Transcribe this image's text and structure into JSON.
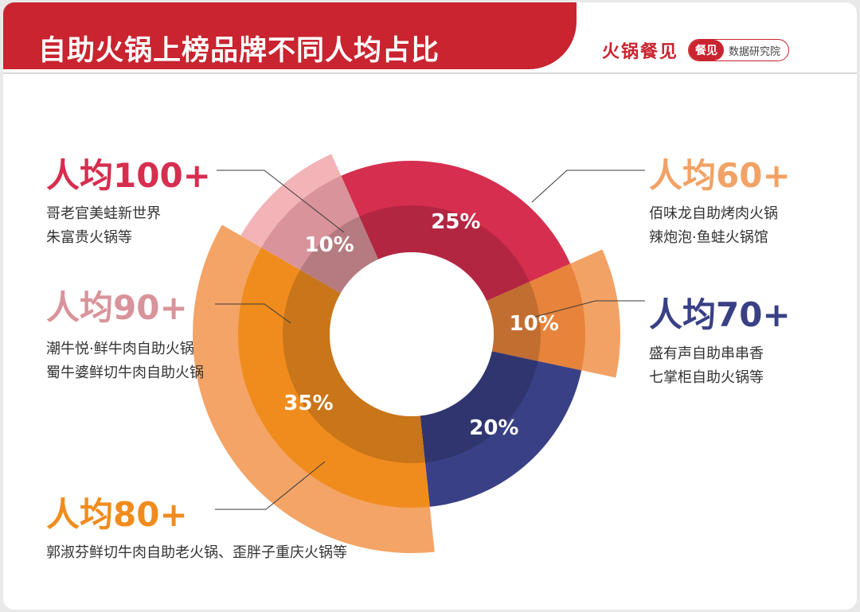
{
  "header": {
    "title": "自助火锅上榜品牌不同人均占比"
  },
  "logo": {
    "brand": "火锅餐见",
    "pill_left": "餐见",
    "pill_right": "数据研究院"
  },
  "chart_data": {
    "type": "pie",
    "title": "自助火锅上榜品牌不同人均占比",
    "series": [
      {
        "category": "人均100+",
        "value": 25,
        "label": "25%",
        "color": "#d62e4f",
        "outer_color": "#d62e4f",
        "brands": [
          "哥老官美蛙新世界",
          "朱富贵火锅等"
        ]
      },
      {
        "category": "人均60+",
        "value": 10,
        "label": "10%",
        "color": "#e8833b",
        "outer_color": "#f2a264",
        "brands": [
          "佰味龙自助烤肉火锅",
          "辣炮泡·鱼蛙火锅馆"
        ]
      },
      {
        "category": "人均70+",
        "value": 20,
        "label": "20%",
        "color": "#3a4085",
        "outer_color": "#3a4085",
        "brands": [
          "盛有声自助串串香",
          "七掌柜自助火锅等"
        ]
      },
      {
        "category": "人均80+",
        "value": 35,
        "label": "35%",
        "color": "#f08c1e",
        "outer_color": "#f3a466",
        "brands": [
          "郭淑芬鲜切牛肉自助老火锅、歪胖子重庆火锅等"
        ]
      },
      {
        "category": "人均90+",
        "value": 10,
        "label": "10%",
        "color": "#d9939a",
        "outer_color": "#f2b4b7",
        "brands": [
          "潮牛悦·鲜牛肉自助火锅",
          "蜀牛婆鲜切牛肉自助火锅"
        ]
      }
    ]
  }
}
